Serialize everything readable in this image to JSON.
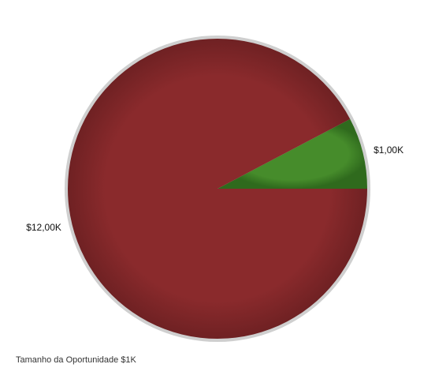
{
  "chart_data": {
    "type": "pie",
    "slices": [
      {
        "label": "$1,00K",
        "value": 1.0,
        "color": "#468c2b"
      },
      {
        "label": "$12,00K",
        "value": 12.0,
        "color": "#8a2a2c"
      }
    ]
  },
  "footer": {
    "text": "Tamanho da Oportunidade $1K"
  }
}
